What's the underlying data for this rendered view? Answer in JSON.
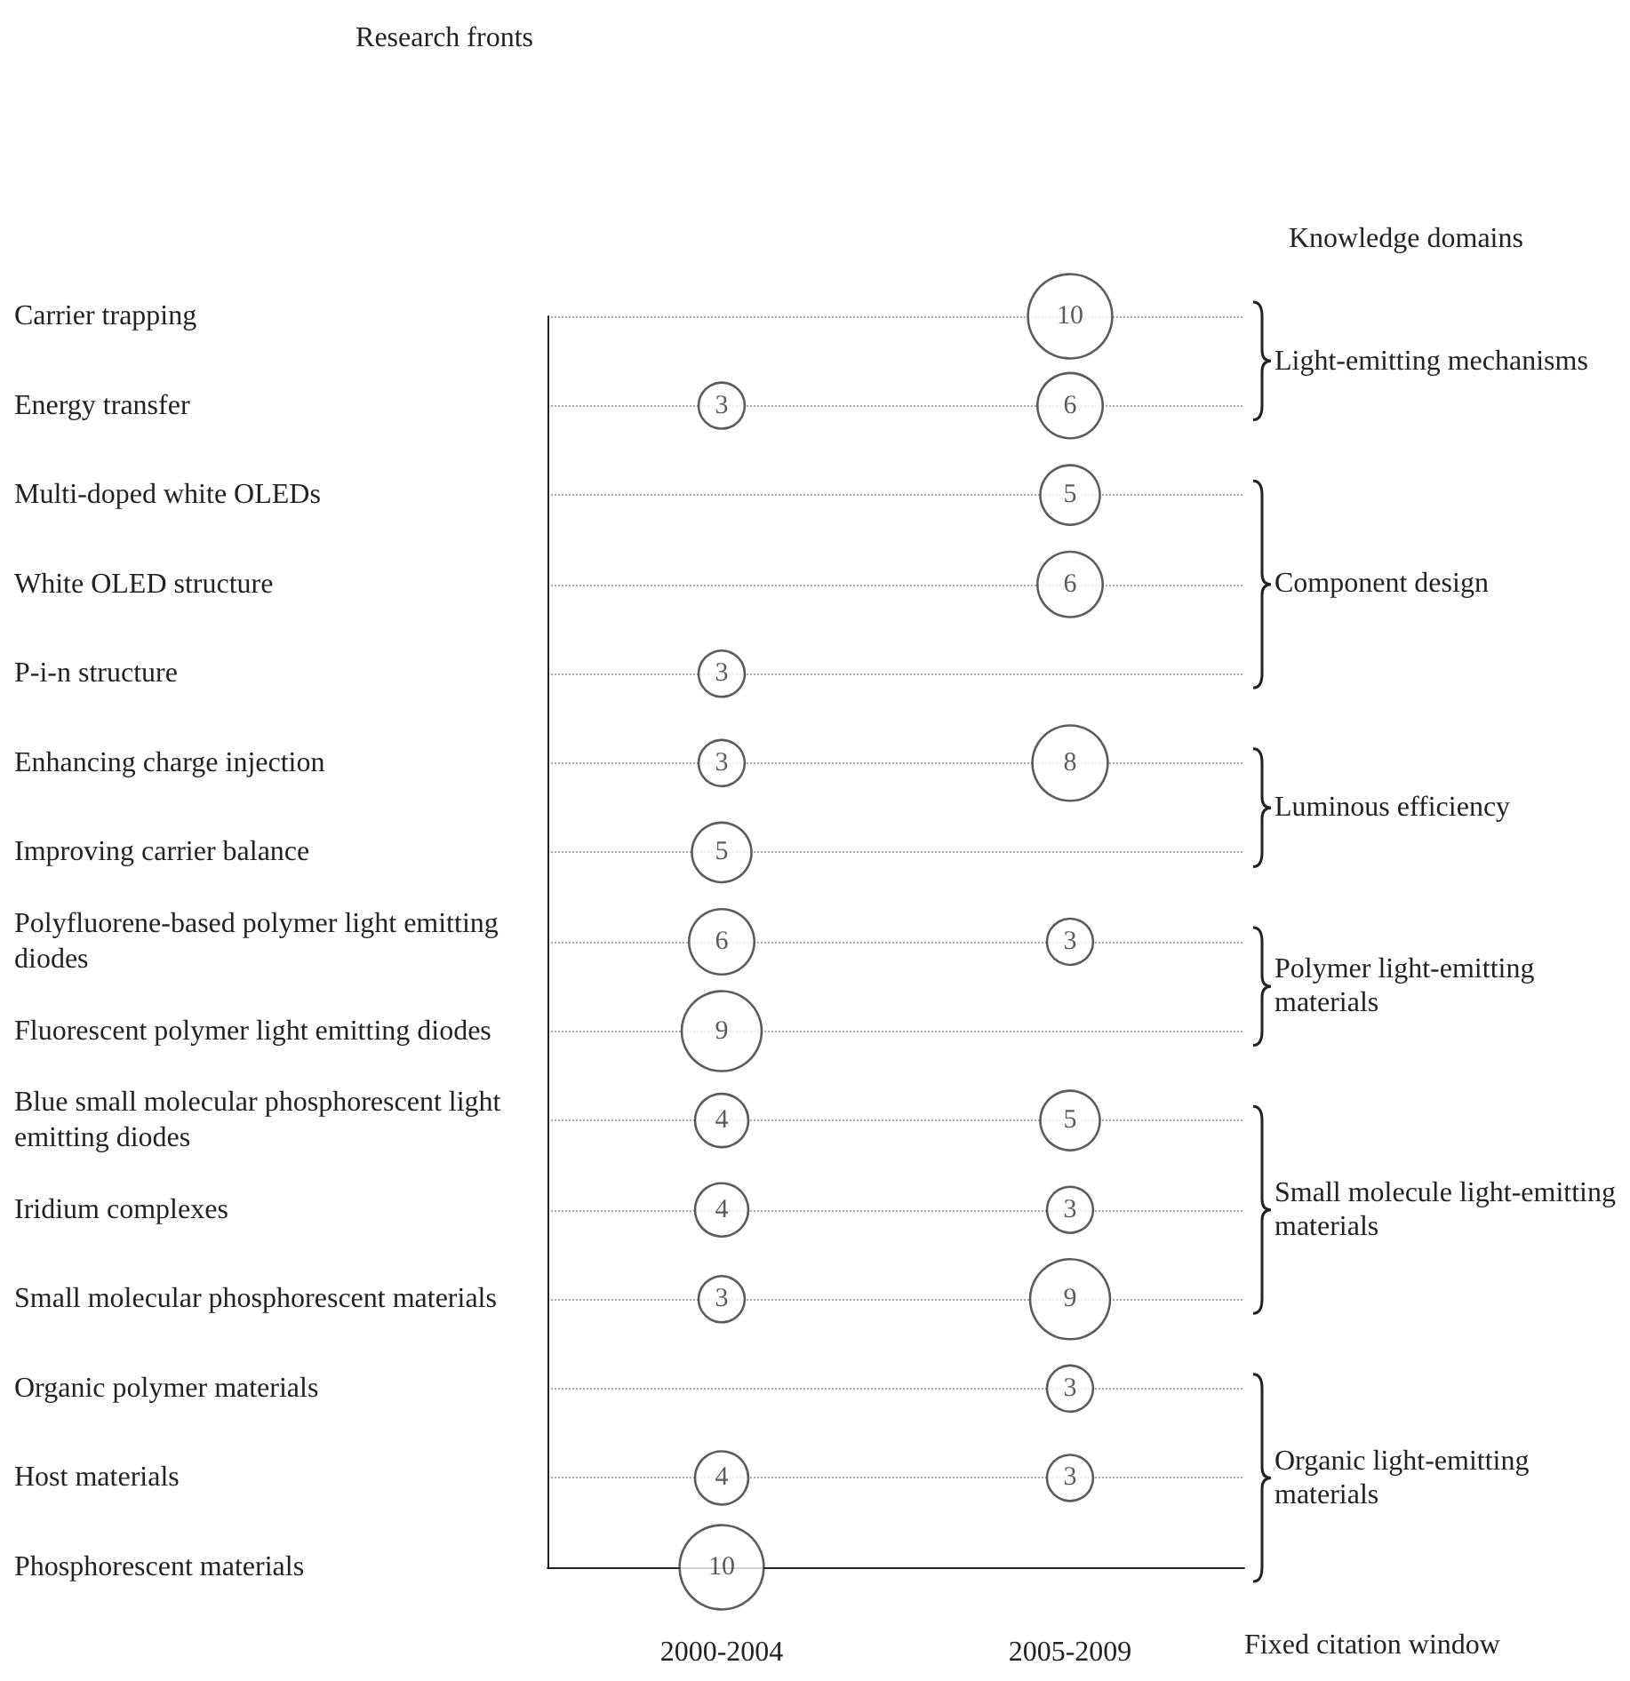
{
  "chart_data": {
    "type": "heatmap",
    "y2_categories": [
      "Light-emitting mechanisms",
      null,
      null,
      "Component design",
      null,
      "Luminous efficiency",
      null,
      "Polymer light-emitting materials",
      null,
      null,
      "Small molecule light-emitting materials",
      null,
      null,
      "Organic light-emitting materials",
      null
    ],
    "xlabel": "Fixed citation window",
    "categories": [
      "2000-2004",
      "2005-2009"
    ],
    "y_categories": [
      "Carrier trapping",
      "Energy transfer",
      "Multi-doped white OLEDs",
      "White OLED structure",
      "P-i-n structure",
      "Enhancing charge injection",
      "Improving carrier balance",
      "Polyfluorene-based polymer light emitting diodes",
      "Fluorescent polymer light emitting diodes",
      "Blue small molecular phosphorescent light emitting diodes",
      "Iridium complexes",
      "Small molecular phosphorescent materials",
      "Organic polymer materials",
      "Host materials",
      "Phosphorescent materials"
    ],
    "cells": [
      [
        null,
        10
      ],
      [
        3,
        6
      ],
      [
        null,
        5
      ],
      [
        null,
        6
      ],
      [
        3,
        null
      ],
      [
        3,
        8
      ],
      [
        5,
        null
      ],
      [
        6,
        3
      ],
      [
        9,
        null
      ],
      [
        4,
        5
      ],
      [
        4,
        3
      ],
      [
        3,
        9
      ],
      [
        null,
        3
      ],
      [
        4,
        3
      ],
      [
        10,
        null
      ]
    ],
    "color": "#333333",
    "data_labels": true,
    "grid": "y",
    "annotations": [
      "Research fronts",
      "Knowledge domains"
    ]
  }
}
